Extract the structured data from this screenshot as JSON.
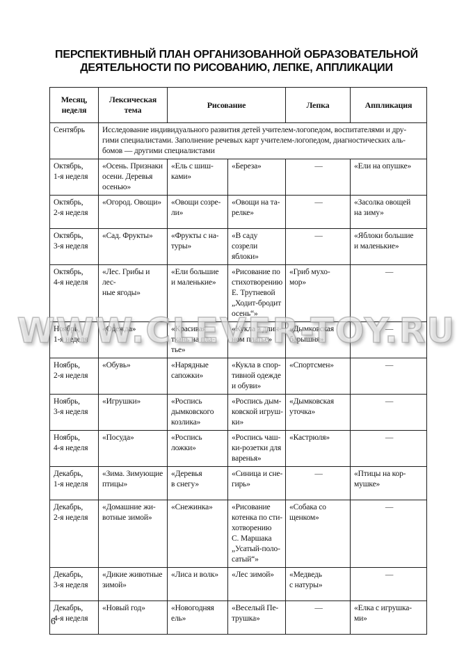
{
  "title": {
    "line1": "ПЕРСПЕКТИВНЫЙ ПЛАН ОРГАНИЗОВАННОЙ ОБРАЗОВАТЕЛЬНОЙ",
    "line2": "ДЕЯТЕЛЬНОСТИ ПО РИСОВАНИЮ, ЛЕПКЕ, АППЛИКАЦИИ"
  },
  "watermark": "WWW.CLEVER-TOY.RU",
  "page": {
    "number": "6"
  },
  "table": {
    "headers": {
      "month": "Месяц,\nнеделя",
      "theme": "Лексическая\nтема",
      "drawing": "Рисование",
      "modeling": "Лепка",
      "applique": "Аппликация"
    },
    "rows": [
      {
        "month": "Сентябрь",
        "merged": "Исследование индивидуального развития детей учителем-логопедом, воспитателями и дру-\nгими специалистами. Заполнение речевых карт учителем-логопедом, диагностических аль-\nбомов — другими специалистами"
      },
      {
        "month": "Октябрь,\n1-я неделя",
        "cells": [
          "«Осень. Признаки\nосени. Деревья\nосенью»",
          "«Ель с шиш-\nками»",
          "«Береза»",
          "—",
          "«Ели на опушке»"
        ]
      },
      {
        "month": "Октябрь,\n2-я неделя",
        "cells": [
          "«Огород. Овощи»",
          "«Овощи созре-\nли»",
          "«Овощи на та-\nрелке»",
          "—",
          "«Засолка овощей\nна зиму»"
        ]
      },
      {
        "month": "Октябрь,\n3-я неделя",
        "cells": [
          "«Сад. Фрукты»",
          "«Фрукты с на-\nтуры»",
          "«В саду созрели\nяблоки»",
          "—",
          "«Яблоки большие\nи маленькие»"
        ]
      },
      {
        "month": "Октябрь,\n4-я неделя",
        "cells": [
          "«Лес. Грибы и лес-\nные ягоды»",
          "«Ели большие\nи маленькие»",
          "«Рисование по\nстихотворению\nЕ. Трутневой\n„Ходит-бродит\nосень“»",
          "«Гриб мухо-\nмор»",
          "—"
        ]
      },
      {
        "month": "Ноябрь,\n1-я неделя",
        "cells": [
          "«Одежда»",
          "«Красивая\nткань на пла-\nтье»",
          "«Кукла в длин-\nном платье»",
          "«Дымковская\nбарышня»",
          "—"
        ]
      },
      {
        "month": "Ноябрь,\n2-я неделя",
        "cells": [
          "«Обувь»",
          "«Нарядные\nсапожки»",
          "«Кукла в спор-\nтивной одежде\nи обуви»",
          "«Спортсмен»",
          "—"
        ]
      },
      {
        "month": "Ноябрь,\n3-я неделя",
        "cells": [
          "«Игрушки»",
          "«Роспись\nдымковского\nкозлика»",
          "«Роспись дым-\nковской игруш-\nки»",
          "«Дымковская\nуточка»",
          "—"
        ]
      },
      {
        "month": "Ноябрь,\n4-я неделя",
        "cells": [
          "«Посуда»",
          "«Роспись\nложки»",
          "«Роспись чаш-\nки-розетки для\nваренья»",
          "«Кастрюля»",
          "—"
        ]
      },
      {
        "month": "Декабрь,\n1-я неделя",
        "cells": [
          "«Зима. Зимующие\nптицы»",
          "«Деревья\nв снегу»",
          "«Синица и сне-\nгирь»",
          "—",
          "«Птицы на кор-\nмушке»"
        ]
      },
      {
        "month": "Декабрь,\n2-я неделя",
        "cells": [
          "«Домашние жи-\nвотные зимой»",
          "«Снежинка»",
          "«Рисование\nкотенка по сти-\nхотворению\nС. Маршака\n„Усатый-поло-\nсатый“»",
          "«Собака со\nщенком»",
          "—"
        ]
      },
      {
        "month": "Декабрь,\n3-я неделя",
        "cells": [
          "«Дикие животные\nзимой»",
          "«Лиса и волк»",
          "«Лес зимой»",
          "«Медведь\nс натуры»",
          "—"
        ]
      },
      {
        "month": "Декабрь,\n4-я неделя",
        "cells": [
          "«Новый год»",
          "«Новогодняя\nель»",
          "«Веселый Пе-\nтрушка»",
          "—",
          "«Елка с игрушка-\nми»"
        ]
      }
    ]
  }
}
